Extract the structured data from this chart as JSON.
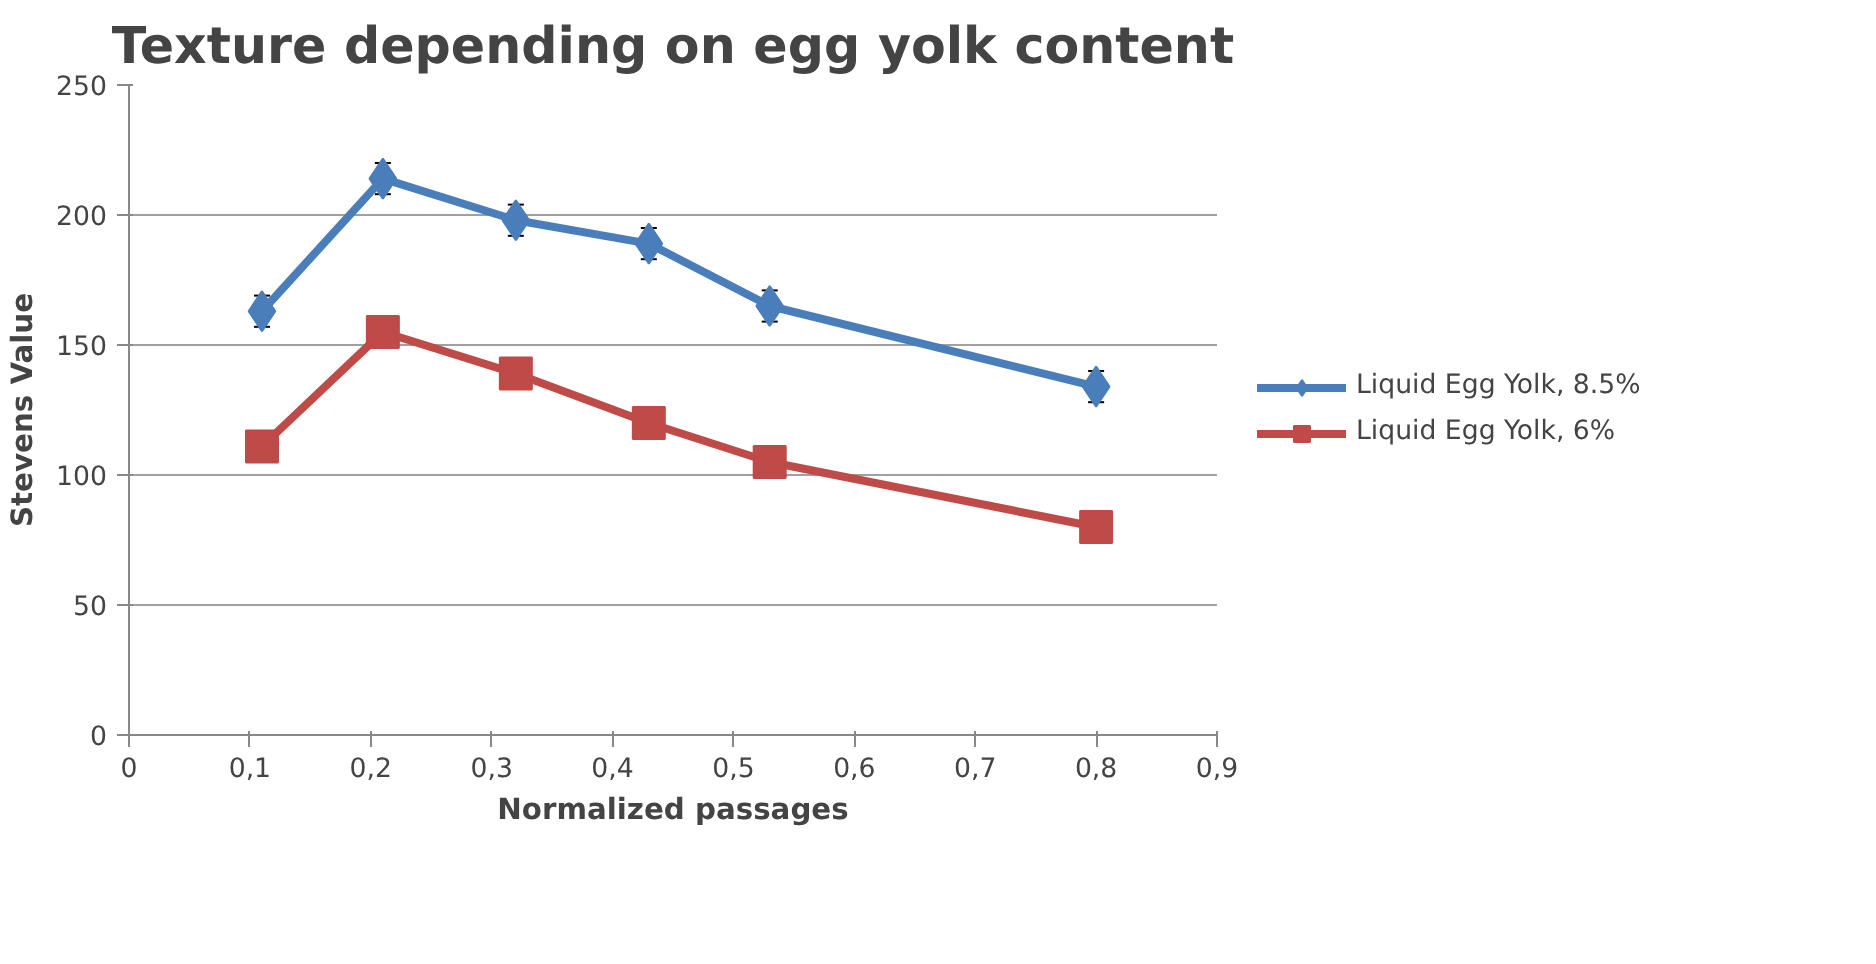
{
  "chart_data": {
    "type": "line",
    "title": "Texture depending on egg yolk content",
    "xlabel": "Normalized passages",
    "ylabel": "Stevens Value",
    "x": [
      0.11,
      0.21,
      0.32,
      0.43,
      0.53,
      0.8
    ],
    "series": [
      {
        "name": "Liquid Egg Yolk, 8.5%",
        "color": "#4a7ebb",
        "marker": "diamond",
        "values": [
          163,
          214,
          198,
          189,
          165,
          134
        ],
        "errors": [
          6,
          6,
          6,
          6,
          6,
          6
        ]
      },
      {
        "name": "Liquid Egg Yolk, 6%",
        "color": "#be4b48",
        "marker": "square",
        "values": [
          111,
          155,
          139,
          120,
          105,
          80
        ]
      }
    ],
    "xlim": [
      0,
      0.9
    ],
    "xticks": [
      {
        "value": 0,
        "label": "0"
      },
      {
        "value": 0.1,
        "label": "0,1"
      },
      {
        "value": 0.2,
        "label": "0,2"
      },
      {
        "value": 0.3,
        "label": "0,3"
      },
      {
        "value": 0.4,
        "label": "0,4"
      },
      {
        "value": 0.5,
        "label": "0,5"
      },
      {
        "value": 0.6,
        "label": "0,6"
      },
      {
        "value": 0.7,
        "label": "0,7"
      },
      {
        "value": 0.8,
        "label": "0,8"
      },
      {
        "value": 0.9,
        "label": "0,9"
      }
    ],
    "ylim": [
      0,
      250
    ],
    "yticks": [
      0,
      50,
      100,
      150,
      200,
      250
    ],
    "grid": "y",
    "legend": "right",
    "line_style": "solid"
  }
}
